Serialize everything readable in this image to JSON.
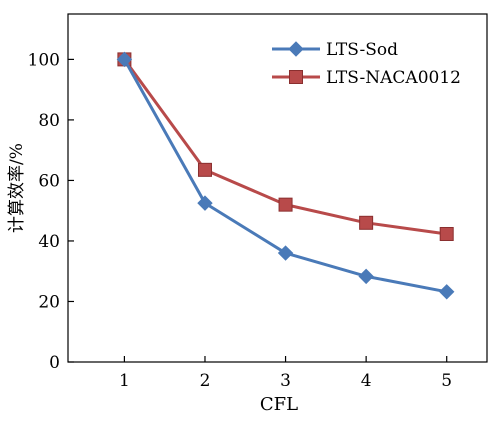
{
  "chart_data": {
    "type": "line",
    "title": "",
    "xlabel": "CFL",
    "ylabel": "计算效率/%",
    "x": [
      1,
      2,
      3,
      4,
      5
    ],
    "xlim": [
      0.3,
      5.5
    ],
    "ylim": [
      0,
      115
    ],
    "xticks": [
      1,
      2,
      3,
      4,
      5
    ],
    "yticks": [
      0,
      20,
      40,
      60,
      80,
      100
    ],
    "grid": false,
    "legend_position": "top-right",
    "series": [
      {
        "name": "LTS-Sod",
        "color": "#4a7ab8",
        "marker": "diamond",
        "values": [
          100,
          52.5,
          36,
          28.3,
          23.2
        ]
      },
      {
        "name": "LTS-NACA0012",
        "color": "#b84a4a",
        "marker": "square",
        "values": [
          100,
          63.5,
          52,
          46,
          42.3
        ]
      }
    ]
  }
}
